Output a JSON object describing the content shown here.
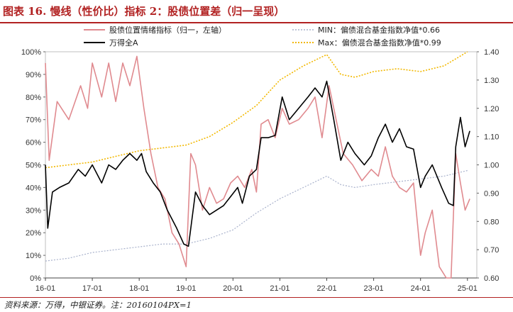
{
  "header": {
    "title": "图表 16. 慢线（性价比）指标 2：股债位置差（归一呈现）",
    "source": "资料来源：万得，中银证券。注：20160104PX=1"
  },
  "chart_data": {
    "type": "line",
    "x_ticks": [
      "16-01",
      "17-01",
      "18-01",
      "19-01",
      "20-01",
      "21-01",
      "22-01",
      "23-01",
      "24-01",
      "25-01"
    ],
    "y_left_ticks": [
      "0%",
      "10%",
      "20%",
      "30%",
      "40%",
      "50%",
      "60%",
      "70%",
      "80%",
      "90%",
      "100%"
    ],
    "y_right_ticks": [
      "0.60",
      "0.70",
      "0.80",
      "0.90",
      "1.00",
      "1.10",
      "1.20",
      "1.30",
      "1.40"
    ],
    "ylim_left": [
      0,
      1
    ],
    "ylim_right": [
      0.6,
      1.4
    ],
    "colors": {
      "bond_position": "#e08a8f",
      "wind_a": "#000000",
      "min": "#a9b2cc",
      "max": "#f2b800"
    },
    "series": [
      {
        "name": "股债位置情绪指标（归一，左轴）",
        "axis": "left",
        "x": [
          2016.0,
          2016.08,
          2016.25,
          2016.5,
          2016.75,
          2016.9,
          2017.0,
          2017.2,
          2017.35,
          2017.5,
          2017.65,
          2017.8,
          2017.95,
          2018.1,
          2018.25,
          2018.4,
          2018.55,
          2018.7,
          2018.85,
          2019.0,
          2019.1,
          2019.2,
          2019.35,
          2019.5,
          2019.65,
          2019.8,
          2019.95,
          2020.1,
          2020.25,
          2020.4,
          2020.5,
          2020.6,
          2020.75,
          2020.9,
          2021.05,
          2021.2,
          2021.4,
          2021.6,
          2021.75,
          2021.9,
          2022.05,
          2022.2,
          2022.35,
          2022.55,
          2022.75,
          2022.95,
          2023.1,
          2023.25,
          2023.4,
          2023.55,
          2023.7,
          2023.85,
          2024.0,
          2024.1,
          2024.25,
          2024.4,
          2024.55,
          2024.65,
          2024.75,
          2024.85,
          2024.95,
          2025.05
        ],
        "y": [
          0.95,
          0.52,
          0.78,
          0.7,
          0.85,
          0.75,
          0.95,
          0.8,
          0.95,
          0.78,
          0.95,
          0.85,
          0.98,
          0.75,
          0.55,
          0.4,
          0.35,
          0.2,
          0.15,
          0.05,
          0.55,
          0.5,
          0.3,
          0.4,
          0.33,
          0.35,
          0.42,
          0.45,
          0.4,
          0.48,
          0.38,
          0.68,
          0.7,
          0.62,
          0.75,
          0.68,
          0.7,
          0.75,
          0.8,
          0.62,
          0.85,
          0.7,
          0.55,
          0.5,
          0.43,
          0.48,
          0.45,
          0.58,
          0.45,
          0.4,
          0.38,
          0.42,
          0.1,
          0.2,
          0.3,
          0.05,
          0.0,
          0.0,
          0.55,
          0.42,
          0.3,
          0.35
        ]
      },
      {
        "name": "万得全A",
        "axis": "left",
        "x": [
          2016.0,
          2016.05,
          2016.15,
          2016.3,
          2016.5,
          2016.7,
          2016.85,
          2017.0,
          2017.2,
          2017.35,
          2017.5,
          2017.65,
          2017.8,
          2017.95,
          2018.05,
          2018.15,
          2018.3,
          2018.45,
          2018.6,
          2018.8,
          2018.95,
          2019.05,
          2019.2,
          2019.35,
          2019.5,
          2019.65,
          2019.8,
          2019.95,
          2020.1,
          2020.2,
          2020.35,
          2020.5,
          2020.6,
          2020.75,
          2020.9,
          2021.05,
          2021.2,
          2021.4,
          2021.6,
          2021.75,
          2021.9,
          2022.0,
          2022.15,
          2022.3,
          2022.45,
          2022.6,
          2022.8,
          2022.95,
          2023.1,
          2023.25,
          2023.4,
          2023.55,
          2023.7,
          2023.85,
          2024.0,
          2024.1,
          2024.25,
          2024.45,
          2024.6,
          2024.7,
          2024.75,
          2024.85,
          2024.95,
          2025.05
        ],
        "y": [
          0.5,
          0.22,
          0.38,
          0.4,
          0.42,
          0.48,
          0.45,
          0.5,
          0.42,
          0.5,
          0.48,
          0.52,
          0.55,
          0.52,
          0.55,
          0.47,
          0.42,
          0.38,
          0.3,
          0.22,
          0.15,
          0.14,
          0.38,
          0.32,
          0.28,
          0.3,
          0.32,
          0.36,
          0.4,
          0.33,
          0.45,
          0.48,
          0.62,
          0.62,
          0.63,
          0.8,
          0.7,
          0.75,
          0.8,
          0.84,
          0.8,
          0.87,
          0.7,
          0.52,
          0.6,
          0.55,
          0.5,
          0.54,
          0.62,
          0.68,
          0.6,
          0.66,
          0.58,
          0.57,
          0.4,
          0.45,
          0.5,
          0.4,
          0.33,
          0.32,
          0.58,
          0.71,
          0.58,
          0.65
        ]
      },
      {
        "name": "MIN：偏债混合基金指数净值*0.66",
        "axis": "right",
        "x": [
          2016.0,
          2016.5,
          2017.0,
          2017.5,
          2018.0,
          2018.5,
          2019.0,
          2019.5,
          2020.0,
          2020.5,
          2021.0,
          2021.5,
          2022.0,
          2022.3,
          2022.6,
          2023.0,
          2023.5,
          2024.0,
          2024.5,
          2025.0
        ],
        "y": [
          0.66,
          0.67,
          0.69,
          0.7,
          0.71,
          0.72,
          0.72,
          0.74,
          0.77,
          0.83,
          0.88,
          0.92,
          0.96,
          0.93,
          0.92,
          0.93,
          0.94,
          0.95,
          0.96,
          0.98
        ]
      },
      {
        "name": "Max：偏债混合基金指数净值*0.99",
        "axis": "right",
        "x": [
          2016.0,
          2016.5,
          2017.0,
          2017.5,
          2018.0,
          2018.5,
          2019.0,
          2019.5,
          2020.0,
          2020.5,
          2021.0,
          2021.5,
          2022.0,
          2022.3,
          2022.6,
          2023.0,
          2023.5,
          2024.0,
          2024.5,
          2024.8,
          2025.0
        ],
        "y": [
          0.99,
          1.0,
          1.01,
          1.03,
          1.05,
          1.06,
          1.07,
          1.1,
          1.15,
          1.21,
          1.3,
          1.35,
          1.39,
          1.32,
          1.31,
          1.33,
          1.34,
          1.33,
          1.35,
          1.38,
          1.4
        ]
      }
    ]
  }
}
